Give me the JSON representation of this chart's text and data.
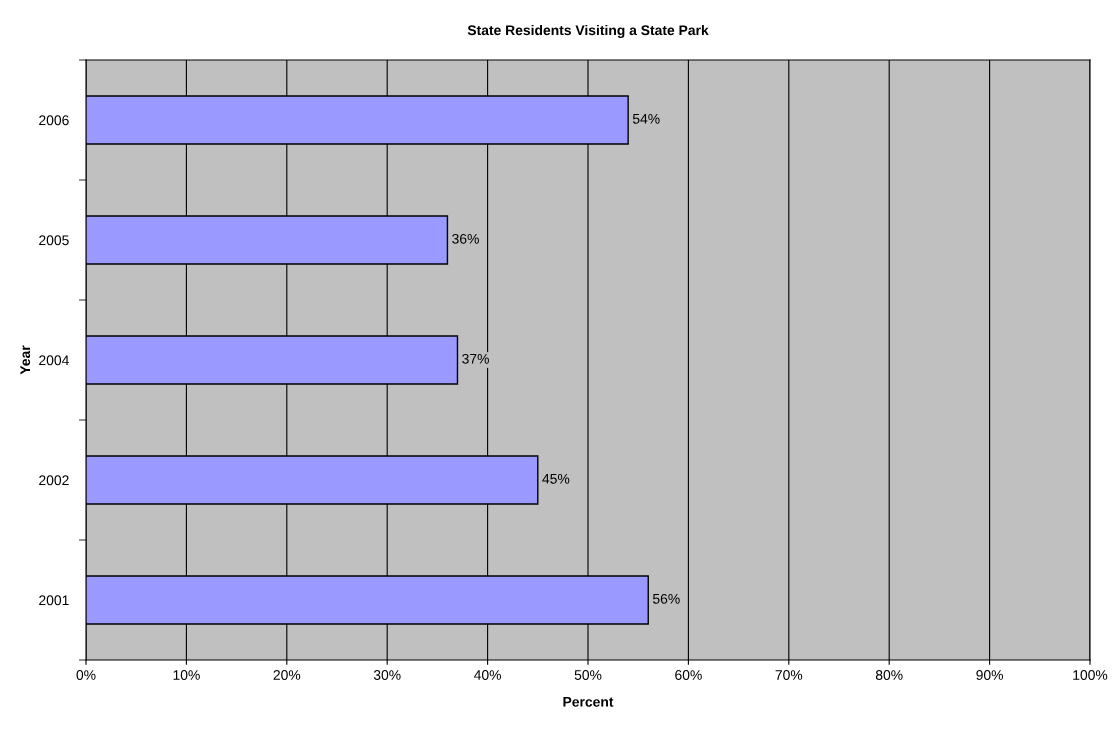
{
  "chart_data": {
    "type": "bar",
    "orientation": "horizontal",
    "title": "State Residents Visiting a State Park",
    "xlabel": "Percent",
    "ylabel": "Year",
    "categories": [
      "2006",
      "2005",
      "2004",
      "2002",
      "2001"
    ],
    "values": [
      54,
      36,
      37,
      45,
      56
    ],
    "value_labels": [
      "54%",
      "36%",
      "37%",
      "45%",
      "56%"
    ],
    "color": "#9999ff",
    "xlim": [
      0,
      100
    ],
    "xticks": [
      {
        "value": 0,
        "label": "0%"
      },
      {
        "value": 10,
        "label": "10%"
      },
      {
        "value": 20,
        "label": "20%"
      },
      {
        "value": 30,
        "label": "30%"
      },
      {
        "value": 40,
        "label": "40%"
      },
      {
        "value": 50,
        "label": "50%"
      },
      {
        "value": 60,
        "label": "60%"
      },
      {
        "value": 70,
        "label": "70%"
      },
      {
        "value": 80,
        "label": "80%"
      },
      {
        "value": 90,
        "label": "90%"
      },
      {
        "value": 100,
        "label": "100%"
      }
    ],
    "grid": "x"
  }
}
